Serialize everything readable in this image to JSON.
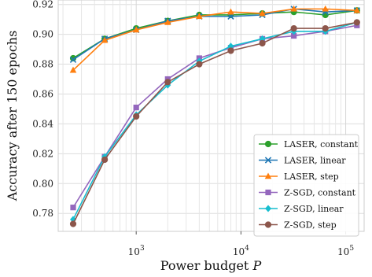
{
  "chart_data": {
    "type": "line",
    "xlabel": "Power budget P",
    "ylabel": "Accuracy after 150 epochs",
    "xscale": "log",
    "xlim": [
      180,
      150000
    ],
    "ylim": [
      0.768,
      0.923
    ],
    "xticks": [
      {
        "value": 1000,
        "base": "10",
        "exp": "3"
      },
      {
        "value": 10000,
        "base": "10",
        "exp": "4"
      },
      {
        "value": 100000,
        "base": "10",
        "exp": "5"
      }
    ],
    "yticks": [
      {
        "value": 0.78,
        "label": "0.78"
      },
      {
        "value": 0.8,
        "label": "0.80"
      },
      {
        "value": 0.82,
        "label": "0.82"
      },
      {
        "value": 0.84,
        "label": "0.84"
      },
      {
        "value": 0.86,
        "label": "0.86"
      },
      {
        "value": 0.88,
        "label": "0.88"
      },
      {
        "value": 0.9,
        "label": "0.90"
      },
      {
        "value": 0.92,
        "label": "0.92"
      }
    ],
    "grid": true,
    "legend_position": "lower-right",
    "x": [
      250,
      500,
      1000,
      2000,
      4000,
      8000,
      16000,
      32000,
      64000,
      128000
    ],
    "series": [
      {
        "name": "LASER, constant",
        "color": "#2ca02c",
        "marker": "circle",
        "values": [
          0.884,
          0.897,
          0.904,
          0.909,
          0.913,
          0.913,
          0.914,
          0.915,
          0.913,
          0.916
        ]
      },
      {
        "name": "LASER, linear",
        "color": "#1f77b4",
        "marker": "x",
        "values": [
          0.883,
          0.897,
          0.903,
          0.909,
          0.912,
          0.912,
          0.913,
          0.917,
          0.915,
          0.916
        ]
      },
      {
        "name": "LASER, step",
        "color": "#ff7f0e",
        "marker": "triangle",
        "values": [
          0.876,
          0.896,
          0.903,
          0.908,
          0.912,
          0.915,
          0.914,
          0.917,
          0.917,
          0.916
        ]
      },
      {
        "name": "Z-SGD, constant",
        "color": "#9467bd",
        "marker": "square",
        "values": [
          0.784,
          0.818,
          0.851,
          0.87,
          0.884,
          0.891,
          0.897,
          0.899,
          0.902,
          0.906
        ]
      },
      {
        "name": "Z-SGD, linear",
        "color": "#17becf",
        "marker": "diamond",
        "values": [
          0.776,
          0.818,
          0.846,
          0.866,
          0.882,
          0.892,
          0.897,
          0.902,
          0.902,
          0.908
        ]
      },
      {
        "name": "Z-SGD, step",
        "color": "#8c564b",
        "marker": "circle",
        "values": [
          0.773,
          0.816,
          0.845,
          0.868,
          0.88,
          0.889,
          0.894,
          0.904,
          0.904,
          0.908
        ]
      }
    ]
  }
}
